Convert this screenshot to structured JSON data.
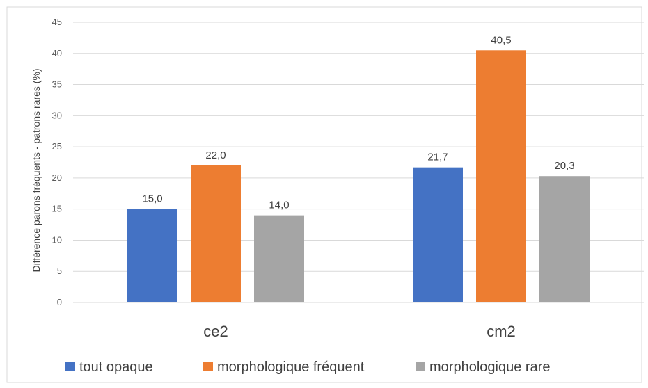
{
  "chart_data": {
    "type": "bar",
    "categories": [
      "ce2",
      "cm2"
    ],
    "series": [
      {
        "name": "tout opaque",
        "values": [
          15.0,
          21.7
        ],
        "labels": [
          "15,0",
          "21,7"
        ],
        "color": "#4472C4"
      },
      {
        "name": "morphologique fréquent",
        "values": [
          22.0,
          40.5
        ],
        "labels": [
          "22,0",
          "40,5"
        ],
        "color": "#ED7D31"
      },
      {
        "name": "morphologique rare",
        "values": [
          14.0,
          20.3
        ],
        "labels": [
          "14,0",
          "20,3"
        ],
        "color": "#A5A5A5"
      }
    ],
    "ylabel": "Différence parons fréquents - patrons rares (%)",
    "ylim": [
      0,
      45
    ],
    "yticks": [
      "0",
      "5",
      "10",
      "15",
      "20",
      "25",
      "30",
      "35",
      "40",
      "45"
    ],
    "grid": true,
    "legend_position": "bottom"
  }
}
